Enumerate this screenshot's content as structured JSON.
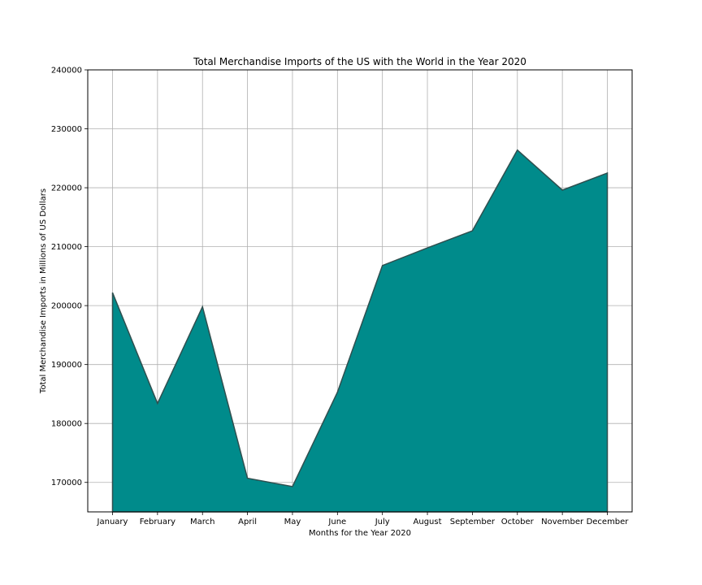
{
  "chart_data": {
    "type": "area",
    "title": "Total Merchandise Imports of the US with the World in the Year 2020",
    "xlabel": "Months for the Year 2020",
    "ylabel": "Total Merchandise Imports in Millions of US Dollars",
    "categories": [
      "January",
      "February",
      "March",
      "April",
      "May",
      "June",
      "July",
      "August",
      "September",
      "October",
      "November",
      "December"
    ],
    "values": [
      202200,
      183400,
      199800,
      170700,
      169300,
      185300,
      206800,
      209800,
      212700,
      226400,
      219600,
      222500
    ],
    "ylim": [
      165000,
      240000
    ],
    "yticks": [
      170000,
      180000,
      190000,
      200000,
      210000,
      220000,
      230000,
      240000
    ],
    "grid": true,
    "fill_color": "#008b8b",
    "line_color": "#2f4f4f"
  }
}
